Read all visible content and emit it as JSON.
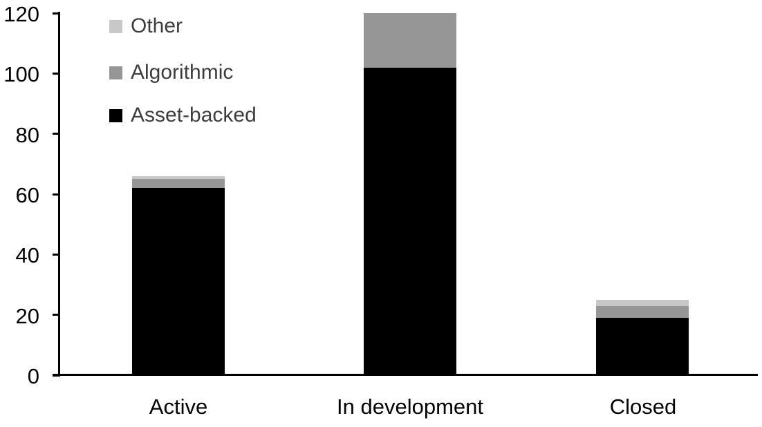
{
  "chart_data": {
    "type": "bar",
    "stacked": true,
    "title": "",
    "xlabel": "",
    "ylabel": "",
    "categories": [
      "Active",
      "In development",
      "Closed"
    ],
    "series": [
      {
        "name": "Asset-backed",
        "color": "#000000",
        "values": [
          62,
          102,
          19
        ]
      },
      {
        "name": "Algorithmic",
        "color": "#969696",
        "values": [
          3,
          18,
          4
        ]
      },
      {
        "name": "Other",
        "color": "#c8c8c8",
        "values": [
          1,
          0,
          2
        ]
      }
    ],
    "ylim": [
      0,
      120
    ],
    "yticks": [
      0,
      20,
      40,
      60,
      80,
      100,
      120
    ],
    "grid": false,
    "legend_position": "top-left",
    "legend_order_top_to_bottom": [
      "Other",
      "Algorithmic",
      "Asset-backed"
    ]
  },
  "colors": {
    "background": "#ffffff",
    "axis": "#000000",
    "tick_label_text": "#000000",
    "legend_text": "#3d3d3d"
  }
}
